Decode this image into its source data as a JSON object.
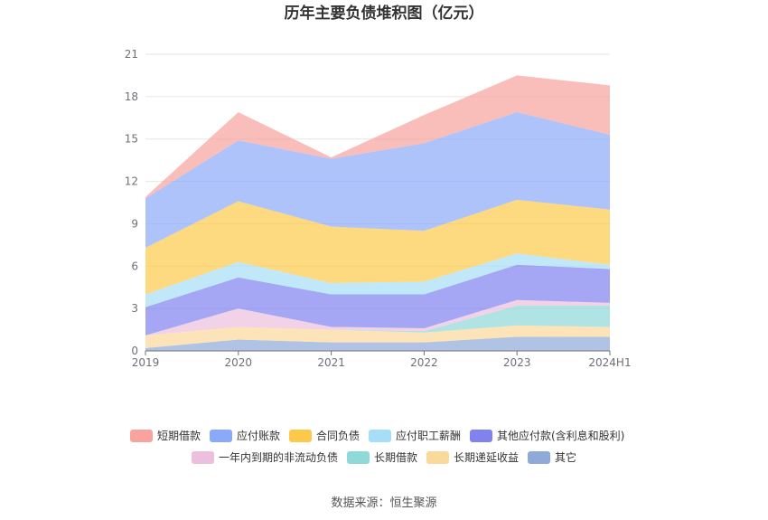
{
  "title": "历年主要负债堆积图（亿元）",
  "source": "数据来源：恒生聚源",
  "chart_data": {
    "type": "area",
    "stacked": true,
    "title": "历年主要负债堆积图（亿元）",
    "xlabel": "",
    "ylabel": "",
    "x": [
      "2019",
      "2020",
      "2021",
      "2022",
      "2023",
      "2024H1"
    ],
    "ylim": [
      0,
      21
    ],
    "yticks": [
      0,
      3,
      6,
      9,
      12,
      15,
      18,
      21
    ],
    "grid": true,
    "legend_position": "bottom",
    "series": [
      {
        "name": "其它",
        "color": "#8fa9d9",
        "values": [
          0.2,
          0.8,
          0.6,
          0.6,
          1.0,
          1.0
        ]
      },
      {
        "name": "长期递延收益",
        "color": "#fbd99a",
        "values": [
          0.9,
          0.9,
          0.9,
          0.7,
          0.8,
          0.7
        ]
      },
      {
        "name": "长期借款",
        "color": "#8fd9d9",
        "values": [
          0.0,
          0.0,
          0.0,
          0.1,
          1.4,
          1.5
        ]
      },
      {
        "name": "一年内到期的非流动负债",
        "color": "#ebbfdd",
        "values": [
          0.0,
          1.3,
          0.2,
          0.2,
          0.4,
          0.2
        ]
      },
      {
        "name": "其他应付款(含利息和股利)",
        "color": "#7f82ef",
        "values": [
          2.0,
          2.2,
          2.3,
          2.4,
          2.5,
          2.4
        ]
      },
      {
        "name": "应付职工薪酬",
        "color": "#a6def7",
        "values": [
          0.9,
          1.1,
          0.8,
          0.9,
          0.8,
          0.3
        ]
      },
      {
        "name": "合同负债",
        "color": "#fcc94a",
        "values": [
          3.3,
          4.3,
          4.0,
          3.6,
          3.8,
          3.9
        ]
      },
      {
        "name": "应付账款",
        "color": "#8aa9f8",
        "values": [
          3.5,
          4.3,
          4.8,
          6.2,
          6.2,
          5.3
        ]
      },
      {
        "name": "短期借款",
        "color": "#f8a39d",
        "values": [
          0.1,
          2.0,
          0.1,
          2.0,
          2.6,
          3.5
        ]
      }
    ],
    "legend_order": [
      "短期借款",
      "应付账款",
      "合同负债",
      "应付职工薪酬",
      "其他应付款(含利息和股利)",
      "一年内到期的非流动负债",
      "长期借款",
      "长期递延收益",
      "其它"
    ]
  }
}
